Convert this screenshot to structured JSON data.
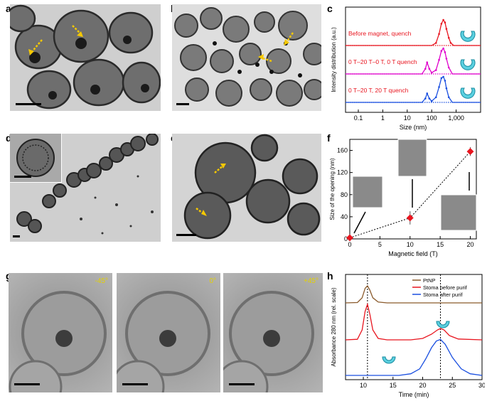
{
  "panels": {
    "a": "a",
    "b": "b",
    "c": "c",
    "d": "d",
    "e": "e",
    "f": "f",
    "g": "g",
    "h": "h"
  },
  "panel_g": {
    "angles": [
      "-45°",
      "0°",
      "+45°"
    ]
  },
  "colors": {
    "arrow": "#f5c800",
    "red": "#e8151f",
    "magenta": "#e000cc",
    "blue": "#1a4fe0",
    "brown": "#8a5a2b",
    "cyan": "#5bd0e0"
  },
  "chart_data": [
    {
      "panel": "c",
      "type": "line",
      "xlabel": "Size (nm)",
      "ylabel": "Intensity distribution (a.u.)",
      "xscale": "log",
      "xlim": [
        0.03,
        10000
      ],
      "xticks": [
        "0.1",
        "1",
        "10",
        "100",
        "1,000"
      ],
      "series": [
        {
          "name": "Before magnet, quench",
          "color": "#e8151f",
          "x": [
            0.03,
            100,
            150,
            200,
            250,
            300,
            350,
            400,
            500,
            600,
            800,
            10000
          ],
          "y": [
            0,
            0,
            0.1,
            0.45,
            0.85,
            1.0,
            0.9,
            0.65,
            0.3,
            0.1,
            0,
            0
          ]
        },
        {
          "name": "0 T–20 T–0 T, 0 T quench",
          "color": "#e000cc",
          "x": [
            0.03,
            40,
            55,
            65,
            80,
            100,
            150,
            200,
            250,
            300,
            350,
            400,
            500,
            700,
            10000
          ],
          "y": [
            0,
            0,
            0.2,
            0.45,
            0.2,
            0.05,
            0.15,
            0.55,
            0.9,
            1.0,
            0.85,
            0.6,
            0.25,
            0,
            0
          ]
        },
        {
          "name": "0 T–20 T, 20 T quench",
          "color": "#1a4fe0",
          "x": [
            0.03,
            40,
            55,
            65,
            80,
            100,
            150,
            200,
            250,
            300,
            350,
            400,
            500,
            700,
            10000
          ],
          "y": [
            0,
            0,
            0.15,
            0.35,
            0.15,
            0.05,
            0.2,
            0.6,
            0.95,
            1.0,
            0.85,
            0.55,
            0.2,
            0,
            0
          ]
        }
      ]
    },
    {
      "panel": "f",
      "type": "scatter",
      "xlabel": "Magnetic field (T)",
      "ylabel": "Size of the opening (nm)",
      "xlim": [
        0,
        21
      ],
      "ylim": [
        0,
        180
      ],
      "xticks": [
        0,
        5,
        10,
        15,
        20
      ],
      "yticks": [
        0,
        40,
        80,
        120,
        160
      ],
      "x": [
        0,
        10,
        20
      ],
      "y": [
        2,
        38,
        158
      ],
      "err": [
        3,
        12,
        8
      ]
    },
    {
      "panel": "h",
      "type": "line",
      "xlabel": "Time (min)",
      "ylabel": "Absorbance 280 nm (rel. scale)",
      "xlim": [
        7,
        30
      ],
      "xticks": [
        10,
        15,
        20,
        25,
        30
      ],
      "markers_x": [
        10.7,
        23
      ],
      "series": [
        {
          "name": "PtNP",
          "color": "#8a5a2b",
          "x": [
            7,
            9,
            9.8,
            10.3,
            10.7,
            11.1,
            11.6,
            12.5,
            14,
            30
          ],
          "y": [
            0,
            0.02,
            0.3,
            0.85,
            1.0,
            0.75,
            0.3,
            0.05,
            0,
            0
          ]
        },
        {
          "name": "Stoma before purif",
          "color": "#e8151f",
          "x": [
            7,
            9,
            9.8,
            10.3,
            10.7,
            11.1,
            11.6,
            12.5,
            14,
            18,
            20,
            21.5,
            22.5,
            23,
            23.6,
            24.5,
            26,
            30
          ],
          "y": [
            0,
            0.02,
            0.35,
            1.0,
            1.25,
            0.9,
            0.35,
            0.05,
            0,
            0,
            0.05,
            0.2,
            0.35,
            0.4,
            0.35,
            0.15,
            0.03,
            0
          ]
        },
        {
          "name": "Stoma after purif",
          "color": "#1a4fe0",
          "x": [
            7,
            16,
            18,
            19.5,
            20.5,
            21.5,
            22.3,
            23,
            23.8,
            25,
            26.5,
            28,
            30
          ],
          "y": [
            0,
            0,
            0.05,
            0.2,
            0.5,
            0.85,
            1.05,
            1.1,
            0.95,
            0.55,
            0.2,
            0.05,
            0
          ]
        }
      ]
    }
  ]
}
